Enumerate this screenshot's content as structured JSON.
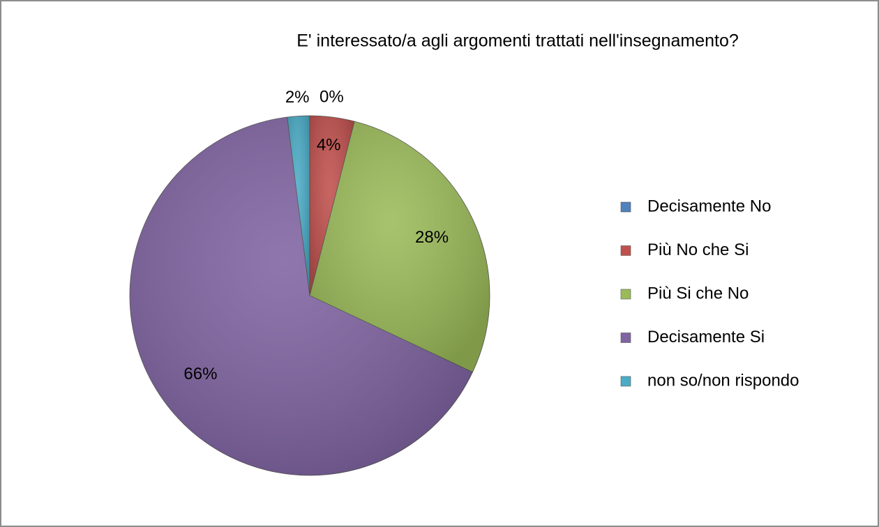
{
  "chart_data": {
    "type": "pie",
    "title": "E' interessato/a agli argomenti trattati nell'insegnamento?",
    "categories": [
      "Decisamente No",
      "Più No che Si",
      "Più Si che No",
      "Decisamente Si",
      "non so/non rispondo"
    ],
    "values": [
      0,
      4,
      28,
      66,
      2
    ],
    "value_labels": [
      "0%",
      "4%",
      "28%",
      "66%",
      "2%"
    ],
    "colors": [
      "#4f81bd",
      "#c0504d",
      "#9bbb59",
      "#8064a2",
      "#4bacc6"
    ],
    "legend": "right"
  }
}
